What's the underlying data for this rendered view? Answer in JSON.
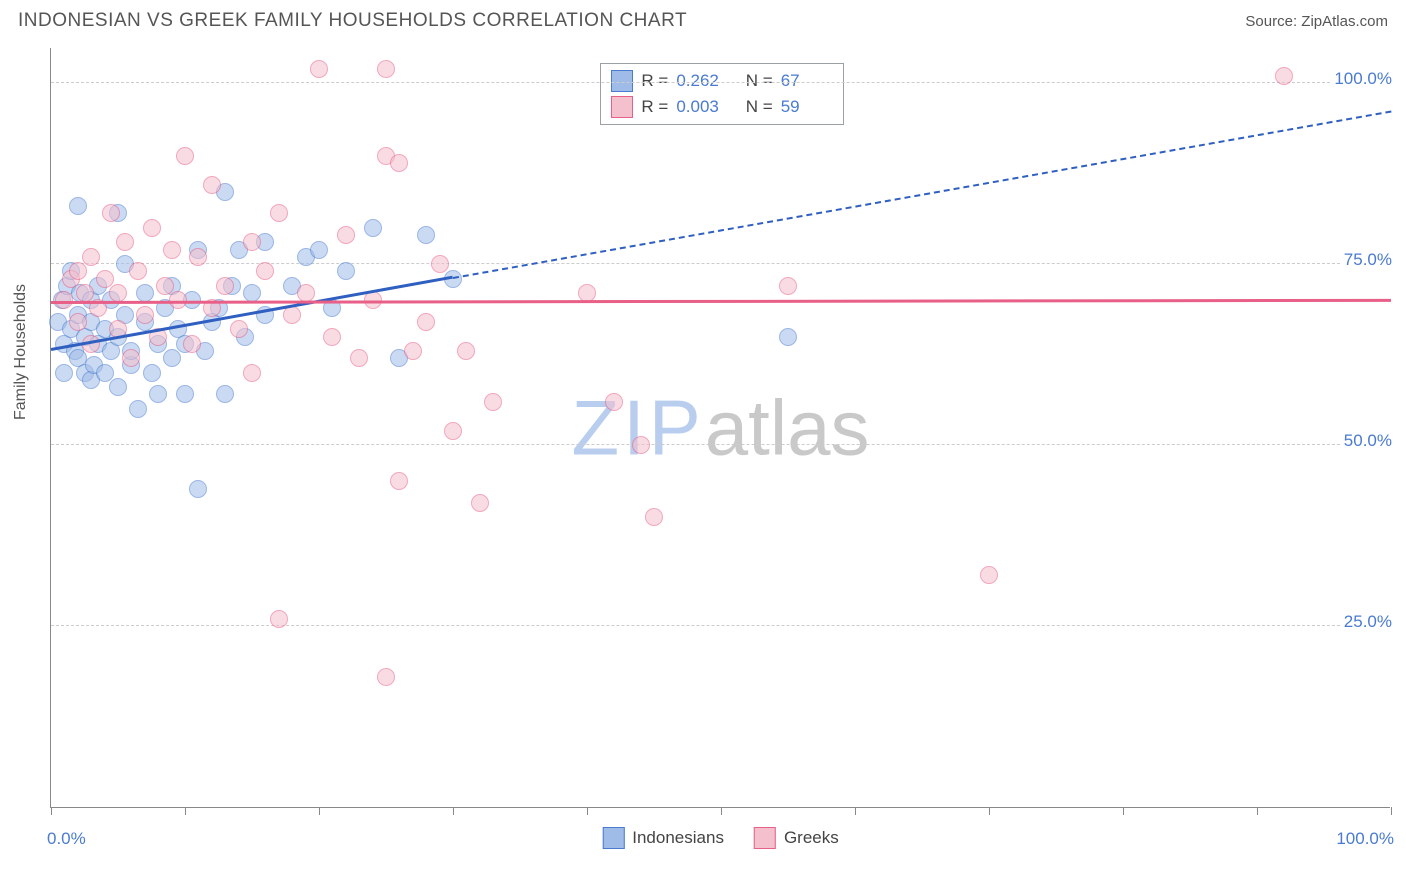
{
  "header": {
    "title": "INDONESIAN VS GREEK FAMILY HOUSEHOLDS CORRELATION CHART",
    "source_label": "Source: ",
    "source_value": "ZipAtlas.com"
  },
  "chart": {
    "type": "scatter",
    "y_axis_title": "Family Households",
    "background_color": "#ffffff",
    "grid_color": "#cccccc",
    "axis_color": "#888888",
    "xlim": [
      0,
      100
    ],
    "ylim": [
      0,
      105
    ],
    "ytick_values": [
      25,
      50,
      75,
      100
    ],
    "ytick_labels": [
      "25.0%",
      "50.0%",
      "75.0%",
      "100.0%"
    ],
    "xtick_values": [
      0,
      10,
      20,
      30,
      40,
      50,
      60,
      70,
      80,
      90,
      100
    ],
    "x_start_label": "0.0%",
    "x_end_label": "100.0%",
    "marker_radius": 9,
    "marker_opacity": 0.55,
    "series": [
      {
        "name": "Indonesians",
        "fill_color": "#9fbce8",
        "stroke_color": "#4a7bd0",
        "trend_color": "#2f5fc0",
        "R": "0.262",
        "N": "67",
        "trend": {
          "x1": 0,
          "y1": 63,
          "x2": 30,
          "y2": 73,
          "x2_dash": 100,
          "y2_dash": 96
        },
        "points": [
          [
            0.5,
            67
          ],
          [
            0.8,
            70
          ],
          [
            1,
            64
          ],
          [
            1,
            60
          ],
          [
            1.2,
            72
          ],
          [
            1.5,
            66
          ],
          [
            1.5,
            74
          ],
          [
            1.8,
            63
          ],
          [
            2,
            68
          ],
          [
            2,
            62
          ],
          [
            2,
            83
          ],
          [
            2.2,
            71
          ],
          [
            2.5,
            60
          ],
          [
            2.5,
            65
          ],
          [
            3,
            59
          ],
          [
            3,
            67
          ],
          [
            3,
            70
          ],
          [
            3.2,
            61
          ],
          [
            3.5,
            72
          ],
          [
            3.5,
            64
          ],
          [
            4,
            66
          ],
          [
            4,
            60
          ],
          [
            4.5,
            63
          ],
          [
            4.5,
            70
          ],
          [
            5,
            58
          ],
          [
            5,
            82
          ],
          [
            5,
            65
          ],
          [
            5.5,
            75
          ],
          [
            5.5,
            68
          ],
          [
            6,
            61
          ],
          [
            6,
            63
          ],
          [
            6.5,
            55
          ],
          [
            7,
            67
          ],
          [
            7,
            71
          ],
          [
            7.5,
            60
          ],
          [
            8,
            57
          ],
          [
            8,
            64
          ],
          [
            8.5,
            69
          ],
          [
            9,
            62
          ],
          [
            9,
            72
          ],
          [
            9.5,
            66
          ],
          [
            10,
            57
          ],
          [
            10,
            64
          ],
          [
            10.5,
            70
          ],
          [
            11,
            77
          ],
          [
            11,
            44
          ],
          [
            11.5,
            63
          ],
          [
            12,
            67
          ],
          [
            12.5,
            69
          ],
          [
            13,
            85
          ],
          [
            13,
            57
          ],
          [
            13.5,
            72
          ],
          [
            14,
            77
          ],
          [
            14.5,
            65
          ],
          [
            15,
            71
          ],
          [
            16,
            68
          ],
          [
            16,
            78
          ],
          [
            18,
            72
          ],
          [
            19,
            76
          ],
          [
            20,
            77
          ],
          [
            21,
            69
          ],
          [
            22,
            74
          ],
          [
            24,
            80
          ],
          [
            26,
            62
          ],
          [
            28,
            79
          ],
          [
            30,
            73
          ],
          [
            55,
            65
          ]
        ]
      },
      {
        "name": "Greeks",
        "fill_color": "#f5c0cd",
        "stroke_color": "#e85f87",
        "trend_color": "#e85f87",
        "R": "0.003",
        "N": "59",
        "trend": {
          "x1": 0,
          "y1": 69.5,
          "x2": 100,
          "y2": 69.8
        },
        "points": [
          [
            1,
            70
          ],
          [
            1.5,
            73
          ],
          [
            2,
            67
          ],
          [
            2,
            74
          ],
          [
            2.5,
            71
          ],
          [
            3,
            76
          ],
          [
            3,
            64
          ],
          [
            3.5,
            69
          ],
          [
            4,
            73
          ],
          [
            4.5,
            82
          ],
          [
            5,
            66
          ],
          [
            5,
            71
          ],
          [
            5.5,
            78
          ],
          [
            6,
            62
          ],
          [
            6.5,
            74
          ],
          [
            7,
            68
          ],
          [
            7.5,
            80
          ],
          [
            8,
            65
          ],
          [
            8.5,
            72
          ],
          [
            9,
            77
          ],
          [
            9.5,
            70
          ],
          [
            10,
            90
          ],
          [
            10.5,
            64
          ],
          [
            11,
            76
          ],
          [
            12,
            69
          ],
          [
            12,
            86
          ],
          [
            13,
            72
          ],
          [
            14,
            66
          ],
          [
            15,
            78
          ],
          [
            15,
            60
          ],
          [
            16,
            74
          ],
          [
            17,
            82
          ],
          [
            17,
            26
          ],
          [
            18,
            68
          ],
          [
            19,
            71
          ],
          [
            20,
            102
          ],
          [
            21,
            65
          ],
          [
            22,
            79
          ],
          [
            23,
            62
          ],
          [
            24,
            70
          ],
          [
            25,
            102
          ],
          [
            25,
            90
          ],
          [
            26,
            89
          ],
          [
            26,
            45
          ],
          [
            27,
            63
          ],
          [
            28,
            67
          ],
          [
            29,
            75
          ],
          [
            30,
            52
          ],
          [
            31,
            63
          ],
          [
            32,
            42
          ],
          [
            33,
            56
          ],
          [
            25,
            18
          ],
          [
            40,
            71
          ],
          [
            42,
            56
          ],
          [
            44,
            50
          ],
          [
            45,
            40
          ],
          [
            55,
            72
          ],
          [
            70,
            32
          ],
          [
            92,
            101
          ]
        ]
      }
    ],
    "stats_box": {
      "left_pct": 41,
      "top_pct": 2
    },
    "watermark": {
      "part1": "ZIP",
      "part2": "atlas"
    }
  },
  "legend": {
    "items": [
      "Indonesians",
      "Greeks"
    ]
  }
}
